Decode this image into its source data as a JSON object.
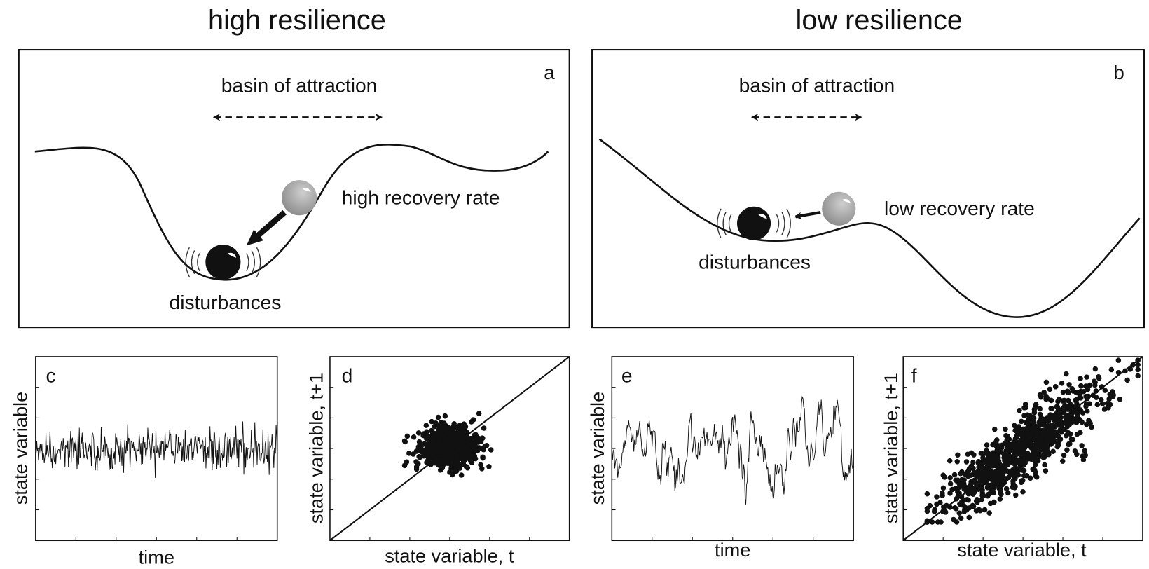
{
  "columns": [
    {
      "title": "high resilience",
      "landscape": {
        "label": "a",
        "basin": "basin of attraction",
        "recovery": "high recovery rate",
        "disturbances": "disturbances"
      },
      "series": {
        "label": "c",
        "ylabel": "state variable",
        "xlabel": "time"
      },
      "scatter": {
        "label": "d",
        "ylabel": "state variable, t+1",
        "xlabel": "state variable, t"
      }
    },
    {
      "title": "low resilience",
      "landscape": {
        "label": "b",
        "basin": "basin of attraction",
        "recovery": "low recovery rate",
        "disturbances": "disturbances"
      },
      "series": {
        "label": "e",
        "ylabel": "state variable",
        "xlabel": "time"
      },
      "scatter": {
        "label": "f",
        "ylabel": "state variable, t+1",
        "xlabel": "state variable, t"
      }
    }
  ]
}
